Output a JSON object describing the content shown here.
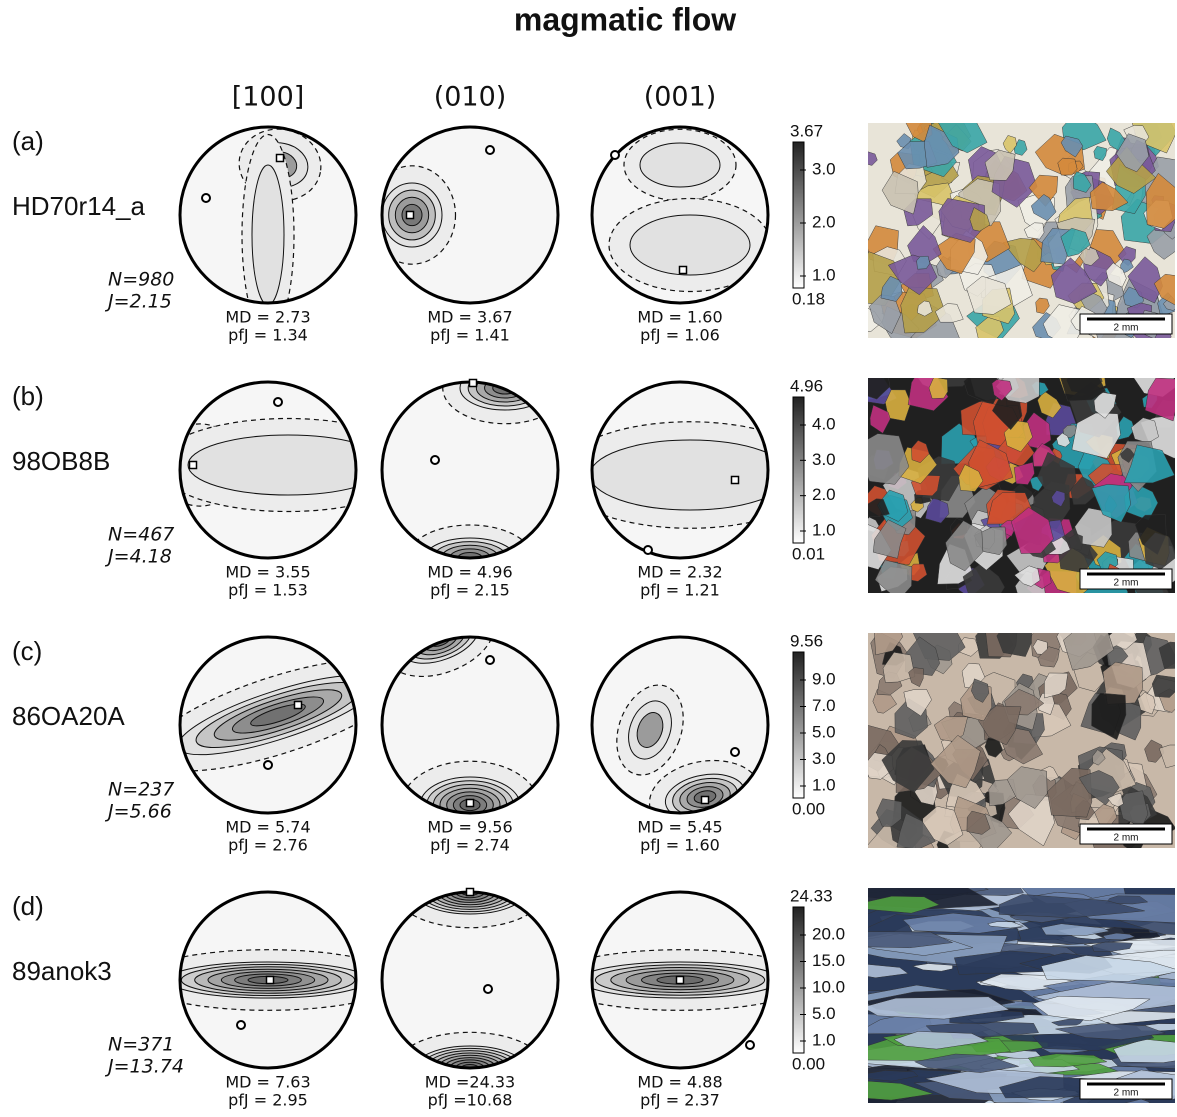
{
  "title": "magmatic flow",
  "columns": [
    "[100]",
    "(010)",
    "(001)"
  ],
  "rows": [
    {
      "label": "(a)",
      "sample": "HD70r14_a",
      "n": "N=980",
      "j": "J=2.15",
      "figures": [
        {
          "md": "MD = 2.73",
          "pfj": "pfJ = 1.34"
        },
        {
          "md": "MD = 3.67",
          "pfj": "pfJ = 1.41"
        },
        {
          "md": "MD = 1.60",
          "pfj": "pfJ = 1.06"
        }
      ],
      "colorbar": {
        "max": "3.67",
        "ticks": [
          "3.0",
          "2.0",
          "1.0"
        ],
        "min": "0.18"
      },
      "scale": "2 mm"
    },
    {
      "label": "(b)",
      "sample": "98OB8B",
      "n": "N=467",
      "j": "J=4.18",
      "figures": [
        {
          "md": "MD = 3.55",
          "pfj": "pfJ = 1.53"
        },
        {
          "md": "MD = 4.96",
          "pfj": "pfJ = 2.15"
        },
        {
          "md": "MD = 2.32",
          "pfj": "pfJ = 1.21"
        }
      ],
      "colorbar": {
        "max": "4.96",
        "ticks": [
          "4.0",
          "3.0",
          "2.0",
          "1.0"
        ],
        "min": "0.01"
      },
      "scale": "2 mm"
    },
    {
      "label": "(c)",
      "sample": "86OA20A",
      "n": "N=237",
      "j": "J=5.66",
      "figures": [
        {
          "md": "MD = 5.74",
          "pfj": "pfJ = 2.76"
        },
        {
          "md": "MD = 9.56",
          "pfj": "pfJ = 2.74"
        },
        {
          "md": "MD = 5.45",
          "pfj": "pfJ = 1.60"
        }
      ],
      "colorbar": {
        "max": "9.56",
        "ticks": [
          "9.0",
          "7.0",
          "5.0",
          "3.0",
          "1.0"
        ],
        "min": "0.00"
      },
      "scale": "2 mm"
    },
    {
      "label": "(d)",
      "sample": "89anok3",
      "n": "N=371",
      "j": "J=13.74",
      "figures": [
        {
          "md": "MD = 7.63",
          "pfj": "pfJ = 2.95"
        },
        {
          "md": "MD =24.33",
          "pfj": "pfJ =10.68"
        },
        {
          "md": "MD = 4.88",
          "pfj": "pfJ = 2.37"
        }
      ],
      "colorbar": {
        "max": "24.33",
        "ticks": [
          "20.0",
          "15.0",
          "10.0",
          "5.0",
          "1.0"
        ],
        "min": "0.00"
      },
      "scale": "2 mm"
    }
  ]
}
